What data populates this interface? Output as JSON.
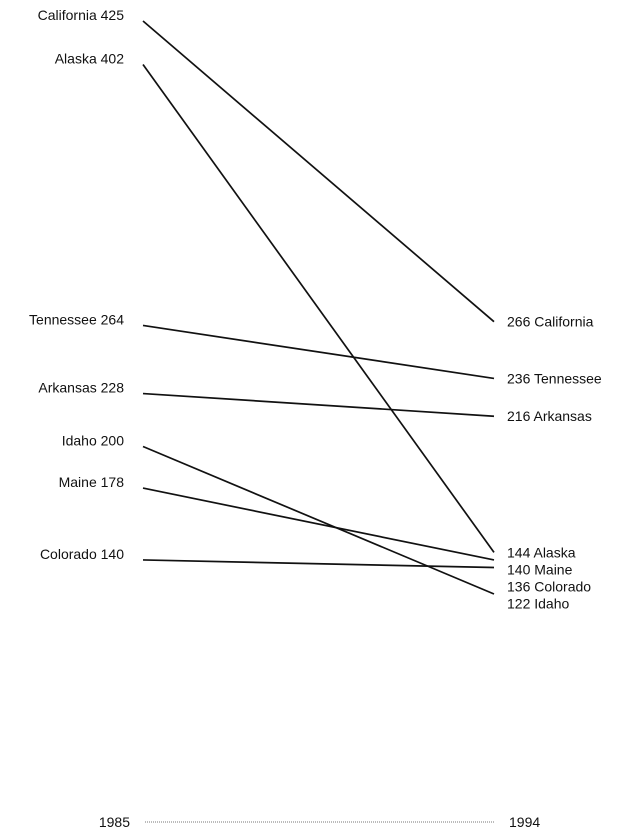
{
  "chart_data": {
    "type": "line",
    "subtype": "slopegraph",
    "title": "",
    "xlabel": "",
    "ylabel": "",
    "x": [
      "1985",
      "1994"
    ],
    "ylim": [
      0,
      440
    ],
    "grid": false,
    "legend": "none",
    "line_color": "#111111",
    "series": [
      {
        "name": "California",
        "values": [
          425,
          266
        ]
      },
      {
        "name": "Alaska",
        "values": [
          402,
          144
        ]
      },
      {
        "name": "Tennessee",
        "values": [
          264,
          236
        ]
      },
      {
        "name": "Arkansas",
        "values": [
          228,
          216
        ]
      },
      {
        "name": "Idaho",
        "values": [
          200,
          122
        ]
      },
      {
        "name": "Maine",
        "values": [
          178,
          140
        ]
      },
      {
        "name": "Colorado",
        "values": [
          140,
          136
        ]
      }
    ]
  }
}
